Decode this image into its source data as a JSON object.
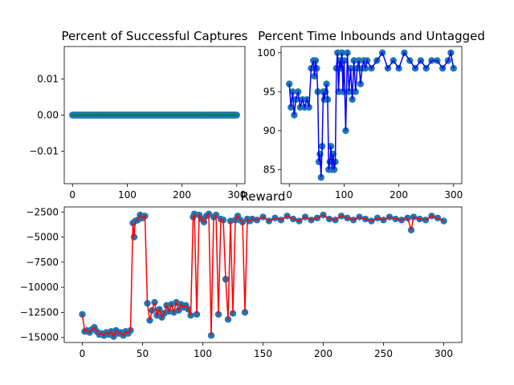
{
  "chart_data": [
    {
      "type": "scatter",
      "title": "Percent of Successful Captures",
      "xlabel": "",
      "ylabel": "",
      "xlim": [
        -15,
        315
      ],
      "ylim": [
        -0.019,
        0.019
      ],
      "xticks": [
        0,
        100,
        200,
        300
      ],
      "yticks": [
        -0.01,
        0.0,
        0.01
      ],
      "ytick_labels": [
        "−0.01",
        "0.00",
        "0.01"
      ],
      "marker_color": "#1f77b4",
      "line_color": "#008000",
      "series": [
        {
          "x_range": [
            0,
            300
          ],
          "step": 1,
          "value": 0
        }
      ]
    },
    {
      "type": "line",
      "title": "Percent Time Inbounds and Untagged",
      "xlabel": "",
      "ylabel": "",
      "xlim": [
        -15,
        315
      ],
      "ylim": [
        83.2,
        100.8
      ],
      "xticks": [
        0,
        100,
        200,
        300
      ],
      "yticks": [
        85,
        90,
        95,
        100
      ],
      "marker_color": "#1f77b4",
      "line_color": "#0000ff",
      "series": [
        {
          "x": [
            0,
            3,
            6,
            9,
            12,
            16,
            20,
            24,
            28,
            32,
            36,
            40,
            44,
            46,
            48,
            50,
            52,
            54,
            56,
            58,
            60,
            62,
            64,
            66,
            68,
            70,
            72,
            74,
            76,
            78,
            80,
            82,
            84,
            86,
            88,
            90,
            92,
            94,
            96,
            98,
            100,
            103,
            106,
            109,
            112,
            115,
            118,
            121,
            124,
            127,
            130,
            133,
            136,
            139,
            142,
            150,
            160,
            170,
            180,
            190,
            200,
            210,
            220,
            230,
            240,
            250,
            260,
            270,
            280,
            290,
            295,
            300
          ],
          "y": [
            96,
            93,
            95,
            92,
            94,
            95,
            93,
            94,
            93,
            94,
            93,
            98,
            99,
            97,
            99,
            98,
            95,
            86,
            87,
            84,
            88,
            95,
            94,
            95,
            96,
            94,
            85,
            86,
            88,
            85,
            87,
            85,
            86,
            98,
            100,
            95,
            99,
            98,
            100,
            95,
            99,
            90,
            100,
            95,
            98,
            94,
            99,
            95,
            98,
            99,
            96,
            98,
            99,
            98,
            99,
            98,
            99,
            100,
            98,
            99,
            98,
            100,
            99,
            98,
            99,
            98,
            99,
            99,
            98,
            99,
            100,
            98
          ]
        }
      ]
    },
    {
      "type": "line",
      "title": "Reward",
      "xlabel": "",
      "ylabel": "",
      "xlim": [
        -15,
        315
      ],
      "ylim": [
        -15500,
        -2000
      ],
      "xticks": [
        0,
        50,
        100,
        150,
        200,
        250,
        300
      ],
      "yticks": [
        -15000,
        -12500,
        -10000,
        -7500,
        -5000,
        -2500
      ],
      "ytick_labels": [
        "−15000",
        "−12500",
        "−10000",
        "−7500",
        "−5000",
        "−2500"
      ],
      "marker_color": "#1f77b4",
      "line_color": "#ff0000",
      "series": [
        {
          "x": [
            0,
            2,
            4,
            6,
            8,
            10,
            12,
            14,
            16,
            18,
            20,
            22,
            24,
            26,
            28,
            30,
            32,
            34,
            36,
            38,
            40,
            42,
            43,
            44,
            46,
            48,
            50,
            52,
            54,
            56,
            58,
            60,
            62,
            64,
            66,
            68,
            70,
            72,
            74,
            76,
            78,
            80,
            82,
            84,
            86,
            88,
            90,
            92,
            93,
            95,
            97,
            99,
            101,
            103,
            105,
            107,
            109,
            111,
            113,
            115,
            117,
            119,
            121,
            123,
            125,
            127,
            129,
            131,
            133,
            135,
            137,
            139,
            141,
            145,
            150,
            155,
            160,
            165,
            170,
            175,
            180,
            185,
            190,
            195,
            200,
            205,
            210,
            215,
            220,
            225,
            230,
            235,
            240,
            245,
            250,
            255,
            260,
            265,
            270,
            273,
            275,
            280,
            285,
            290,
            295,
            300
          ],
          "y": [
            -12700,
            -14400,
            -14300,
            -14500,
            -14200,
            -14000,
            -14400,
            -14700,
            -14600,
            -14800,
            -14500,
            -14700,
            -14400,
            -14900,
            -14300,
            -14600,
            -14500,
            -14800,
            -14400,
            -14600,
            -14300,
            -3600,
            -5000,
            -3400,
            -3300,
            -2800,
            -3100,
            -2900,
            -11600,
            -13300,
            -12300,
            -11500,
            -12800,
            -12200,
            -13000,
            -12600,
            -11800,
            -12400,
            -11700,
            -12500,
            -11500,
            -12300,
            -11700,
            -12000,
            -11800,
            -12200,
            -12800,
            -3000,
            -2700,
            -12700,
            -2800,
            -3200,
            -3500,
            -2900,
            -2700,
            -14800,
            -3000,
            -2800,
            -12700,
            -3200,
            -3300,
            -9200,
            -13200,
            -3400,
            -12600,
            -3300,
            -2900,
            -3300,
            -3500,
            -12500,
            -3200,
            -3400,
            -3200,
            -3300,
            -3000,
            -3400,
            -3100,
            -3300,
            -2900,
            -3200,
            -3400,
            -3000,
            -3300,
            -3100,
            -2800,
            -3200,
            -3300,
            -2900,
            -3100,
            -3300,
            -3000,
            -3200,
            -3400,
            -3100,
            -3300,
            -3000,
            -3200,
            -3300,
            -3100,
            -4300,
            -3000,
            -3200,
            -3300,
            -2900,
            -3100,
            -3400
          ]
        }
      ]
    }
  ]
}
